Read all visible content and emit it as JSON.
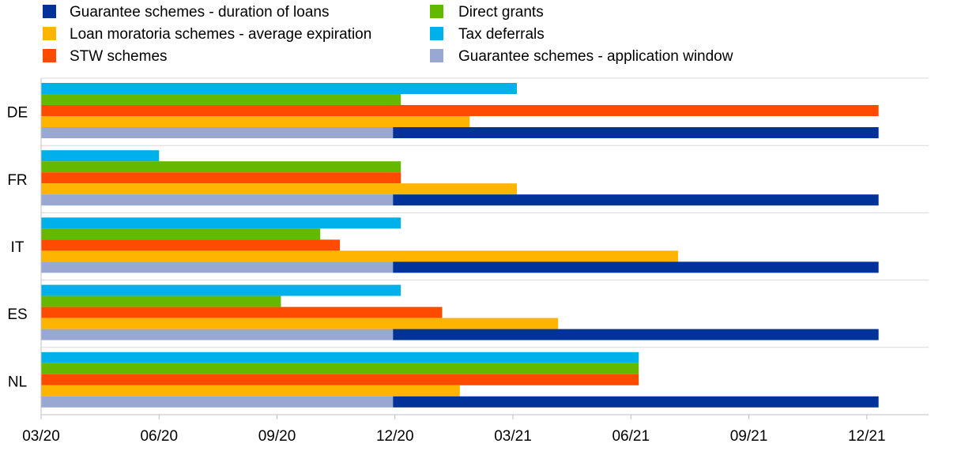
{
  "chart_data": {
    "type": "bar",
    "orientation": "horizontal",
    "x_axis": {
      "min": 0,
      "max": 22.5,
      "unit": "months since 03/20",
      "ticks": [
        {
          "label": "03/20",
          "value": 0
        },
        {
          "label": "06/20",
          "value": 3
        },
        {
          "label": "09/20",
          "value": 6
        },
        {
          "label": "12/20",
          "value": 9
        },
        {
          "label": "03/21",
          "value": 12
        },
        {
          "label": "06/21",
          "value": 15
        },
        {
          "label": "09/21",
          "value": 18
        },
        {
          "label": "12/21",
          "value": 21
        }
      ]
    },
    "grid": "horizontal separators between countries",
    "legend_position": "top",
    "categories": [
      "DE",
      "FR",
      "IT",
      "ES",
      "NL"
    ],
    "series": [
      {
        "key": "tax",
        "name": "Tax deferrals",
        "color": "#00b0e8",
        "values": [
          [
            0,
            12.1
          ],
          [
            0,
            3.0
          ],
          [
            0,
            9.15
          ],
          [
            0,
            9.15
          ],
          [
            0,
            15.2
          ]
        ]
      },
      {
        "key": "grants",
        "name": "Direct grants",
        "color": "#65b800",
        "values": [
          [
            0,
            9.15
          ],
          [
            0,
            9.15
          ],
          [
            0,
            7.1
          ],
          [
            0,
            6.1
          ],
          [
            0,
            15.2
          ]
        ]
      },
      {
        "key": "stw",
        "name": "STW schemes",
        "color": "#ff4b00",
        "values": [
          [
            0,
            21.3
          ],
          [
            0,
            9.15
          ],
          [
            0,
            7.6
          ],
          [
            0,
            10.2
          ],
          [
            0,
            15.2
          ]
        ]
      },
      {
        "key": "moratoria",
        "name": "Loan moratoria schemes - average expiration",
        "color": "#ffb400",
        "values": [
          [
            0,
            10.9
          ],
          [
            0,
            12.1
          ],
          [
            0,
            16.2
          ],
          [
            0,
            13.15
          ],
          [
            0,
            10.65
          ]
        ]
      },
      {
        "key": "guar_window",
        "name": "Guarantee schemes - application window",
        "color": "#98a8d2",
        "values": [
          [
            0,
            8.95
          ],
          [
            0,
            8.95
          ],
          [
            0,
            8.95
          ],
          [
            0,
            8.95
          ],
          [
            0,
            8.95
          ]
        ]
      },
      {
        "key": "guar_duration",
        "name": "Guarantee schemes - duration of loans",
        "color": "#003299",
        "values": [
          [
            8.95,
            21.3
          ],
          [
            8.95,
            21.3
          ],
          [
            8.95,
            21.3
          ],
          [
            8.95,
            21.3
          ],
          [
            8.95,
            21.3
          ]
        ]
      }
    ],
    "legend_order": [
      "guar_duration",
      "moratoria",
      "stw",
      "grants",
      "tax",
      "guar_window"
    ]
  }
}
